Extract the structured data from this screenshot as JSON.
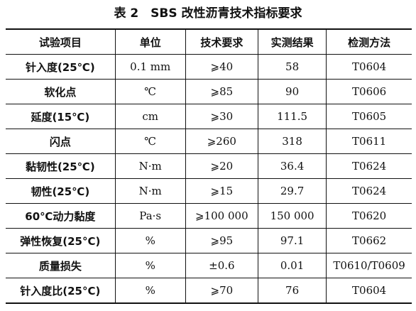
{
  "title": "表 2　SBS 改性沥青技术指标要求",
  "table": {
    "header": [
      "试验项目",
      "单位",
      "技术要求",
      "实测结果",
      "检测方法"
    ],
    "rows": [
      [
        "针入度(25℃)",
        "0.1 mm",
        "⩾40",
        "58",
        "T0604"
      ],
      [
        "软化点",
        "℃",
        "⩾85",
        "90",
        "T0606"
      ],
      [
        "延度(15℃)",
        "cm",
        "⩾30",
        "111.5",
        "T0605"
      ],
      [
        "闪点",
        "℃",
        "⩾260",
        "318",
        "T0611"
      ],
      [
        "黏韧性(25℃)",
        "N·m",
        "⩾20",
        "36.4",
        "T0624"
      ],
      [
        "韧性(25℃)",
        "N·m",
        "⩾15",
        "29.7",
        "T0624"
      ],
      [
        "60℃动力黏度",
        "Pa·s",
        "⩾100 000",
        "150 000",
        "T0620"
      ],
      [
        "弹性恢复(25°C)",
        "%",
        "⩾95",
        "97.1",
        "T0662"
      ],
      [
        "质量损失",
        "%",
        "±0.6",
        "0.01",
        "T0610/T0609"
      ],
      [
        "针入度比(25°C)",
        "%",
        "⩾70",
        "76",
        "T0604"
      ]
    ]
  }
}
